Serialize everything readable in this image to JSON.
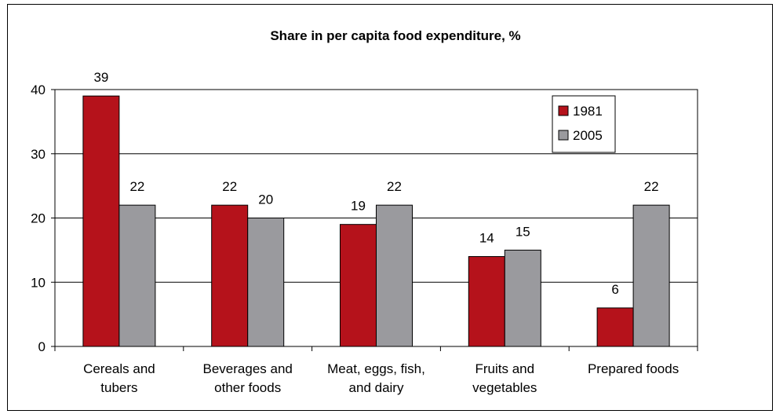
{
  "chart_data": {
    "type": "bar",
    "title": "Share in per capita food expenditure, %",
    "xlabel": "",
    "ylabel": "",
    "ylim": [
      0,
      40
    ],
    "yticks": [
      "0",
      "10",
      "20",
      "30",
      "40"
    ],
    "categories": [
      [
        "Cereals and",
        "tubers"
      ],
      [
        "Beverages and",
        "other foods"
      ],
      [
        "Meat, eggs, fish,",
        "and dairy"
      ],
      [
        "Fruits and",
        "vegetables"
      ],
      [
        "Prepared foods"
      ]
    ],
    "series": [
      {
        "name": "1981",
        "color": "#b5121b",
        "values": [
          39,
          22,
          19,
          14,
          6
        ]
      },
      {
        "name": "2005",
        "color": "#9a9a9e",
        "values": [
          22,
          20,
          22,
          15,
          22
        ]
      }
    ],
    "grid": true,
    "legend_position": "top-right"
  }
}
